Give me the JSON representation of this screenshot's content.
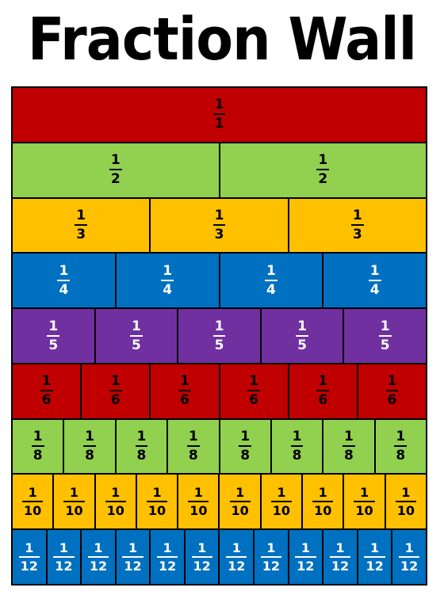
{
  "title": "Fraction Wall",
  "rows": [
    {
      "numerator": "1",
      "denominator": "1",
      "count": 1,
      "color": "#C00000",
      "text_color": "#000000"
    },
    {
      "numerator": "1",
      "denominator": "2",
      "count": 2,
      "color": "#92D050",
      "text_color": "#000000"
    },
    {
      "numerator": "1",
      "denominator": "3",
      "count": 3,
      "color": "#FFC000",
      "text_color": "#000000"
    },
    {
      "numerator": "1",
      "denominator": "4",
      "count": 4,
      "color": "#0070C0",
      "text_color": "#FFFFFF"
    },
    {
      "numerator": "1",
      "denominator": "5",
      "count": 5,
      "color": "#7030A0",
      "text_color": "#FFFFFF"
    },
    {
      "numerator": "1",
      "denominator": "6",
      "count": 6,
      "color": "#C00000",
      "text_color": "#000000"
    },
    {
      "numerator": "1",
      "denominator": "8",
      "count": 8,
      "color": "#92D050",
      "text_color": "#000000"
    },
    {
      "numerator": "1",
      "denominator": "10",
      "count": 10,
      "color": "#FFC000",
      "text_color": "#000000"
    },
    {
      "numerator": "1",
      "denominator": "12",
      "count": 12,
      "color": "#0070C0",
      "text_color": "#FFFFFF"
    }
  ]
}
